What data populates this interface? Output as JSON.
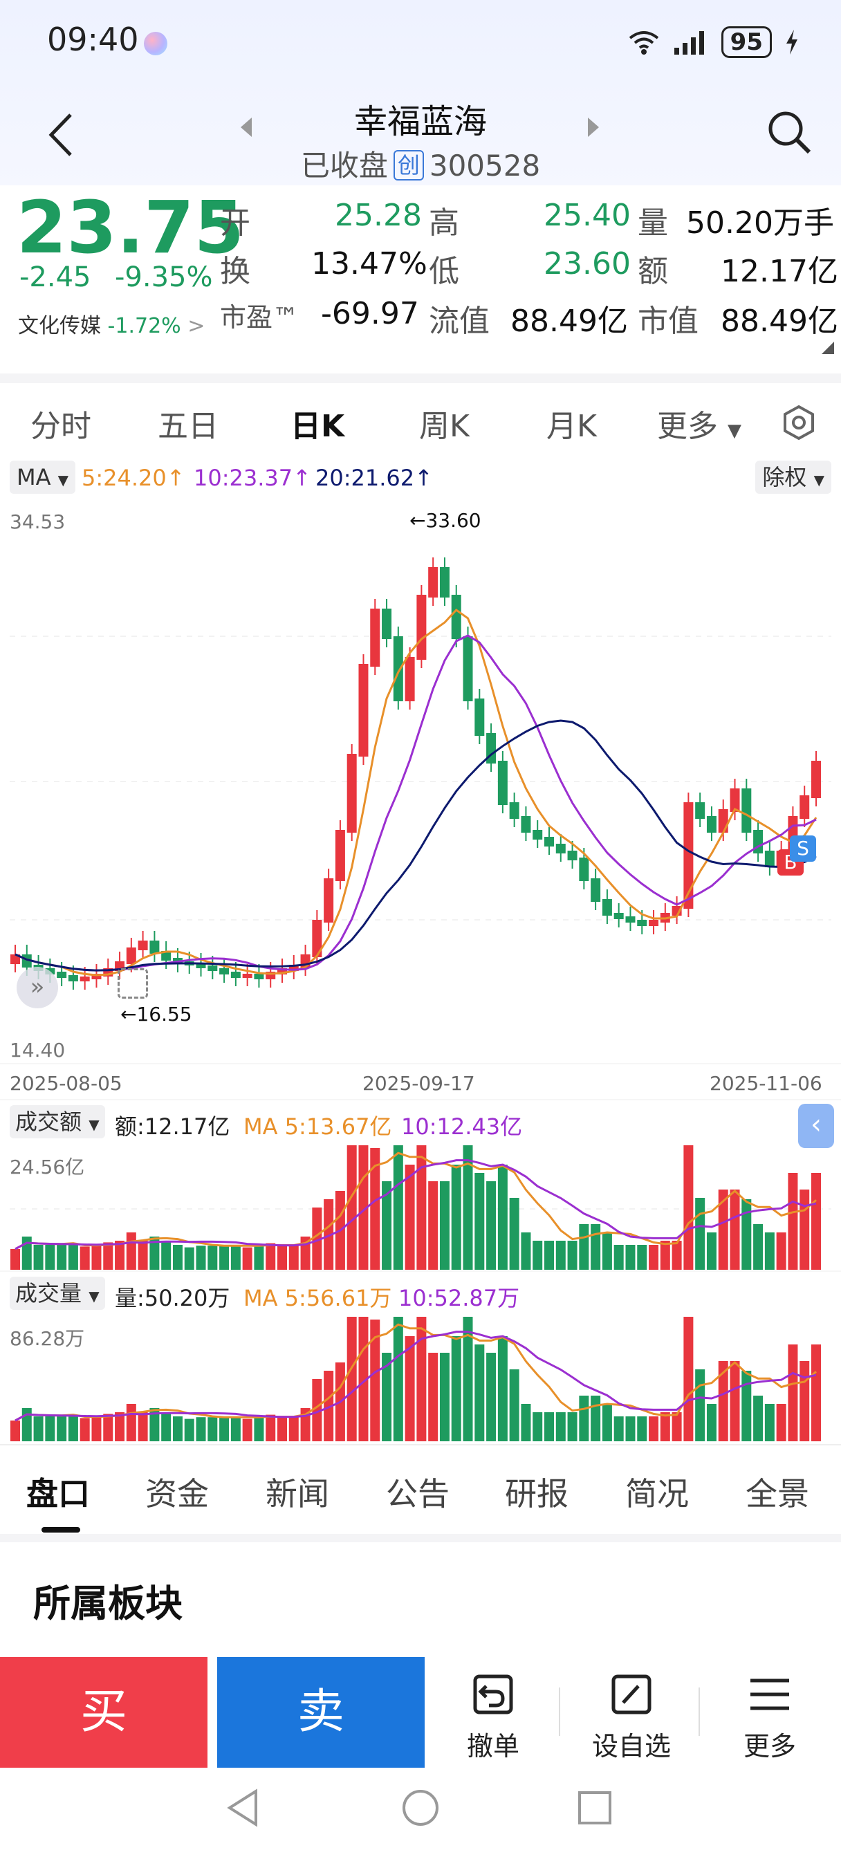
{
  "status_bar": {
    "time": "09:40",
    "battery": "95"
  },
  "header": {
    "stock_name": "幸福蓝海",
    "status": "已收盘",
    "board_tag": "创",
    "code": "300528"
  },
  "quote": {
    "price": "23.75",
    "change": "-2.45",
    "change_pct": "-9.35%",
    "sector_name": "文化传媒",
    "sector_change": "-1.72%",
    "open_label": "开",
    "open": "25.28",
    "high_label": "高",
    "high": "25.40",
    "volume_label": "量",
    "volume": "50.20万手",
    "turnover_label": "换",
    "turnover": "13.47%",
    "low_label": "低",
    "low": "23.60",
    "amount_label": "额",
    "amount": "12.17亿",
    "pe_label": "市盈™",
    "pe": "-69.97",
    "float_cap_label": "流值",
    "float_cap": "88.49亿",
    "market_cap_label": "市值",
    "market_cap": "88.49亿"
  },
  "chart_tabs": [
    "分时",
    "五日",
    "日K",
    "周K",
    "月K",
    "更多"
  ],
  "active_chart_tab": "日K",
  "kline": {
    "ma_button": "MA",
    "ma5": "5:24.20↑",
    "ma10": "10:23.37↑",
    "ma20": "20:21.62↑",
    "adjust_button": "除权",
    "y_max_label": "34.53",
    "y_min_label": "14.40",
    "high_mark": "←33.60",
    "low_mark": "←16.55",
    "dates": [
      "2025-08-05",
      "2025-09-17",
      "2025-11-06"
    ]
  },
  "amount_panel": {
    "button": "成交额",
    "value": "额:12.17亿",
    "ma5": "MA 5:13.67亿",
    "ma10": "10:12.43亿",
    "y_max_label": "24.56亿"
  },
  "volume_panel": {
    "button": "成交量",
    "value": "量:50.20万",
    "ma5": "MA 5:56.61万",
    "ma10": "10:52.87万",
    "y_max_label": "86.28万"
  },
  "colors": {
    "up": "#e8363e",
    "down": "#1e9b5f",
    "ma5": "#e8902a",
    "ma10": "#9b2fd0",
    "ma20": "#0d1a6e"
  },
  "bottom_tabs": [
    "盘口",
    "资金",
    "新闻",
    "公告",
    "研报",
    "简况",
    "全景"
  ],
  "section": {
    "title": "所属板块"
  },
  "actions": {
    "buy": "买",
    "sell": "卖",
    "cancel_order": "撤单",
    "set_watchlist": "设自选",
    "more": "更多"
  }
}
